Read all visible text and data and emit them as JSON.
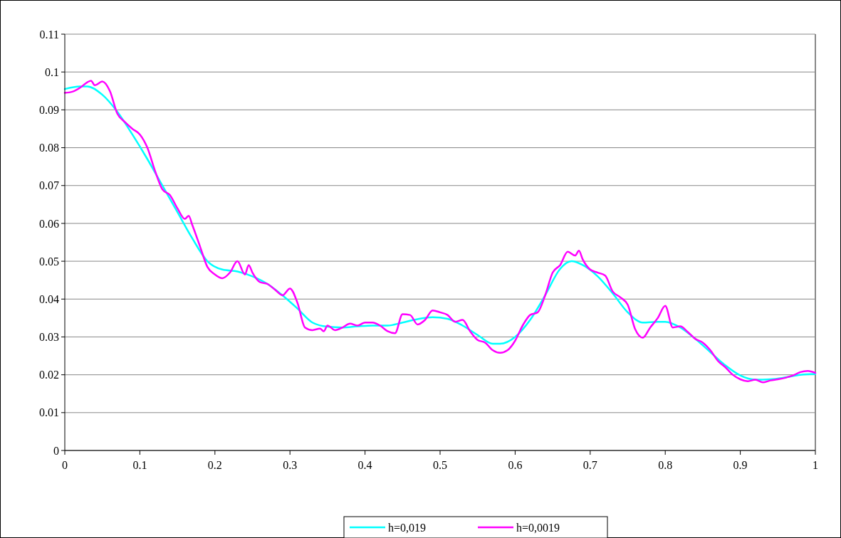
{
  "chart_data": {
    "type": "line",
    "xlim": [
      0,
      1
    ],
    "xticks": [
      0,
      0.1,
      0.2,
      0.3,
      0.4,
      0.5,
      0.6,
      0.7,
      0.8,
      0.9,
      1
    ],
    "ylim": [
      0,
      0.11
    ],
    "yticks": [
      0,
      0.01,
      0.02,
      0.03,
      0.04,
      0.05,
      0.06,
      0.07,
      0.08,
      0.09,
      0.1,
      0.11
    ],
    "grid": "y",
    "legend": "bottom",
    "marker": "none",
    "line_style": "solid",
    "series": [
      {
        "name": "h=0,019",
        "color": "#00ffff",
        "x": [
          0,
          0.02,
          0.03,
          0.05,
          0.07,
          0.09,
          0.11,
          0.13,
          0.15,
          0.17,
          0.19,
          0.21,
          0.23,
          0.25,
          0.27,
          0.29,
          0.31,
          0.33,
          0.35,
          0.37,
          0.39,
          0.41,
          0.43,
          0.45,
          0.47,
          0.49,
          0.51,
          0.53,
          0.55,
          0.57,
          0.58,
          0.6,
          0.62,
          0.64,
          0.66,
          0.675,
          0.69,
          0.71,
          0.73,
          0.75,
          0.77,
          0.79,
          0.8,
          0.82,
          0.84,
          0.86,
          0.88,
          0.9,
          0.92,
          0.94,
          0.96,
          0.98,
          1
        ],
        "values": [
          0.0955,
          0.0962,
          0.0962,
          0.094,
          0.0895,
          0.0835,
          0.077,
          0.07,
          0.063,
          0.056,
          0.05,
          0.0478,
          0.0473,
          0.046,
          0.044,
          0.041,
          0.0375,
          0.0338,
          0.0327,
          0.0325,
          0.0328,
          0.033,
          0.033,
          0.0338,
          0.0347,
          0.0352,
          0.0348,
          0.033,
          0.0305,
          0.0282,
          0.0282,
          0.03,
          0.0345,
          0.041,
          0.048,
          0.05,
          0.049,
          0.046,
          0.0415,
          0.0365,
          0.0338,
          0.034,
          0.034,
          0.0325,
          0.0295,
          0.026,
          0.0225,
          0.0198,
          0.0187,
          0.0188,
          0.0193,
          0.02,
          0.0202
        ]
      },
      {
        "name": "h=0,0019",
        "color": "#ff00ff",
        "x": [
          0,
          0.01,
          0.02,
          0.03,
          0.035,
          0.04,
          0.05,
          0.06,
          0.07,
          0.08,
          0.09,
          0.1,
          0.11,
          0.12,
          0.13,
          0.14,
          0.15,
          0.16,
          0.165,
          0.17,
          0.18,
          0.19,
          0.2,
          0.21,
          0.22,
          0.23,
          0.24,
          0.245,
          0.25,
          0.26,
          0.27,
          0.28,
          0.29,
          0.3,
          0.31,
          0.32,
          0.33,
          0.34,
          0.345,
          0.35,
          0.36,
          0.37,
          0.38,
          0.39,
          0.4,
          0.41,
          0.42,
          0.43,
          0.44,
          0.45,
          0.46,
          0.47,
          0.48,
          0.49,
          0.5,
          0.51,
          0.52,
          0.53,
          0.54,
          0.55,
          0.56,
          0.57,
          0.58,
          0.59,
          0.6,
          0.61,
          0.62,
          0.63,
          0.64,
          0.65,
          0.66,
          0.67,
          0.68,
          0.685,
          0.69,
          0.7,
          0.71,
          0.72,
          0.73,
          0.74,
          0.75,
          0.76,
          0.77,
          0.78,
          0.79,
          0.8,
          0.81,
          0.82,
          0.83,
          0.84,
          0.85,
          0.86,
          0.87,
          0.88,
          0.89,
          0.9,
          0.91,
          0.92,
          0.93,
          0.94,
          0.95,
          0.96,
          0.97,
          0.98,
          0.99,
          1
        ],
        "values": [
          0.0945,
          0.0948,
          0.0958,
          0.0973,
          0.0977,
          0.0965,
          0.0975,
          0.095,
          0.089,
          0.0868,
          0.085,
          0.0835,
          0.08,
          0.074,
          0.069,
          0.0675,
          0.064,
          0.0612,
          0.062,
          0.0595,
          0.054,
          0.0485,
          0.0465,
          0.0455,
          0.047,
          0.05,
          0.0465,
          0.049,
          0.047,
          0.0445,
          0.044,
          0.0425,
          0.041,
          0.0428,
          0.039,
          0.0325,
          0.0318,
          0.0322,
          0.0315,
          0.033,
          0.0318,
          0.0325,
          0.0335,
          0.033,
          0.0338,
          0.0338,
          0.033,
          0.0315,
          0.031,
          0.036,
          0.0358,
          0.0333,
          0.0345,
          0.037,
          0.0365,
          0.0358,
          0.034,
          0.0345,
          0.0315,
          0.0292,
          0.0285,
          0.0265,
          0.0258,
          0.0265,
          0.029,
          0.033,
          0.0358,
          0.0365,
          0.041,
          0.047,
          0.049,
          0.0525,
          0.0515,
          0.0528,
          0.0505,
          0.0478,
          0.047,
          0.0462,
          0.042,
          0.0405,
          0.0385,
          0.032,
          0.0298,
          0.0325,
          0.035,
          0.0382,
          0.0325,
          0.0328,
          0.0313,
          0.0295,
          0.0285,
          0.0265,
          0.0237,
          0.022,
          0.02,
          0.0188,
          0.0183,
          0.0187,
          0.018,
          0.0185,
          0.0188,
          0.0192,
          0.0198,
          0.0207,
          0.021,
          0.0205
        ]
      }
    ]
  }
}
